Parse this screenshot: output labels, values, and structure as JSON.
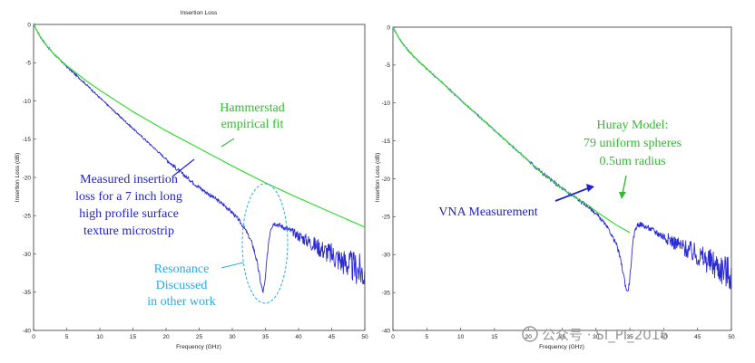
{
  "chart_data": [
    {
      "type": "line",
      "title": "Insertion Loss",
      "xlabel": "Frequency (GHz)",
      "ylabel": "Insertion Loss (dB)",
      "xlim": [
        0,
        50
      ],
      "ylim": [
        -40,
        0
      ],
      "xticks": [
        "0",
        "5",
        "10",
        "15",
        "20",
        "25",
        "30",
        "35",
        "40",
        "45",
        "50"
      ],
      "yticks": [
        "0",
        "-5",
        "-10",
        "-15",
        "-20",
        "-25",
        "-30",
        "-35",
        "-40"
      ],
      "series": [
        {
          "name": "Measured",
          "color": "#2b2bd6",
          "x": [
            0,
            1,
            2,
            3,
            5,
            8,
            10,
            12,
            15,
            18,
            20,
            22,
            25,
            27,
            29,
            30,
            31,
            32,
            33,
            33.5,
            34,
            34.3,
            34.6,
            34.9,
            35.2,
            35.5,
            35.8,
            36.2,
            36.6,
            37,
            38,
            40,
            42,
            44,
            46,
            48,
            49,
            50
          ],
          "y": [
            0,
            -1.6,
            -2.8,
            -3.8,
            -5.5,
            -7.9,
            -9.6,
            -11.2,
            -13.6,
            -16.0,
            -17.6,
            -19.2,
            -21.3,
            -22.5,
            -23.8,
            -24.6,
            -25.6,
            -26.9,
            -28.6,
            -30.2,
            -32.3,
            -33.8,
            -35.0,
            -34.0,
            -31.0,
            -28.2,
            -26.6,
            -26.0,
            -26.0,
            -26.2,
            -26.6,
            -27.6,
            -28.6,
            -29.6,
            -30.6,
            -31.6,
            -32.1,
            -32.6
          ]
        },
        {
          "name": "Hammerstad empirical fit",
          "color": "#33dd33",
          "x": [
            0,
            1,
            2,
            3,
            5,
            8,
            10,
            15,
            20,
            25,
            30,
            35,
            40,
            45,
            50
          ],
          "y": [
            0,
            -1.6,
            -2.8,
            -3.8,
            -5.4,
            -7.4,
            -8.6,
            -11.4,
            -13.9,
            -16.2,
            -18.5,
            -20.7,
            -22.7,
            -24.6,
            -26.5
          ]
        }
      ],
      "annotations": {
        "hammerstad": [
          "Hammerstad",
          "empirical fit"
        ],
        "measured": [
          "Measured insertion",
          "loss for a 7 inch long",
          "high profile surface",
          "texture microstrip"
        ],
        "resonance": [
          "Resonance",
          "Discussed",
          "in other work"
        ]
      }
    },
    {
      "type": "line",
      "title": "",
      "xlabel": "Frequency (GHz)",
      "ylabel": "Insertion Loss (dB)",
      "xlim": [
        0,
        50
      ],
      "ylim": [
        -40,
        0
      ],
      "xticks": [
        "0",
        "5",
        "10",
        "15",
        "20",
        "25",
        "30",
        "35",
        "40",
        "45",
        "50"
      ],
      "yticks": [
        "0",
        "-5",
        "-10",
        "-15",
        "-20",
        "-25",
        "-30",
        "-35",
        "-40"
      ],
      "series": [
        {
          "name": "VNA Measurement",
          "color": "#2b2bd6",
          "x": [
            0,
            1,
            2,
            3,
            5,
            8,
            10,
            12,
            15,
            18,
            20,
            22,
            25,
            27,
            29,
            30,
            31,
            32,
            33,
            33.5,
            34,
            34.3,
            34.6,
            34.9,
            35.2,
            35.5,
            35.8,
            36.2,
            36.6,
            37,
            38,
            40,
            42,
            44,
            46,
            48,
            49,
            50
          ],
          "y": [
            0,
            -1.6,
            -2.8,
            -3.8,
            -5.5,
            -7.9,
            -9.6,
            -11.2,
            -13.6,
            -16.0,
            -17.6,
            -19.2,
            -21.3,
            -22.5,
            -23.8,
            -24.6,
            -25.6,
            -26.9,
            -28.6,
            -30.2,
            -32.3,
            -33.8,
            -35.0,
            -34.0,
            -31.0,
            -28.2,
            -26.6,
            -26.0,
            -26.0,
            -26.2,
            -26.6,
            -27.6,
            -28.6,
            -29.6,
            -30.6,
            -31.6,
            -32.1,
            -32.6
          ]
        },
        {
          "name": "Huray Model",
          "color": "#33dd33",
          "x": [
            0,
            1,
            2,
            3,
            5,
            8,
            10,
            12,
            15,
            18,
            20,
            22,
            25,
            27,
            29,
            30,
            31,
            32,
            33,
            34,
            35
          ],
          "y": [
            0,
            -1.6,
            -2.8,
            -3.8,
            -5.5,
            -7.9,
            -9.6,
            -11.2,
            -13.6,
            -16.0,
            -17.6,
            -19.2,
            -21.3,
            -22.5,
            -23.6,
            -24.3,
            -24.9,
            -25.5,
            -26.1,
            -26.6,
            -27.1
          ]
        }
      ],
      "annotations": {
        "huray": [
          "Huray Model:",
          "79 uniform spheres",
          "0.5um radius"
        ],
        "vna": [
          "VNA Measurement"
        ]
      }
    }
  ],
  "watermark": "公众号 · SI_PI_2016"
}
